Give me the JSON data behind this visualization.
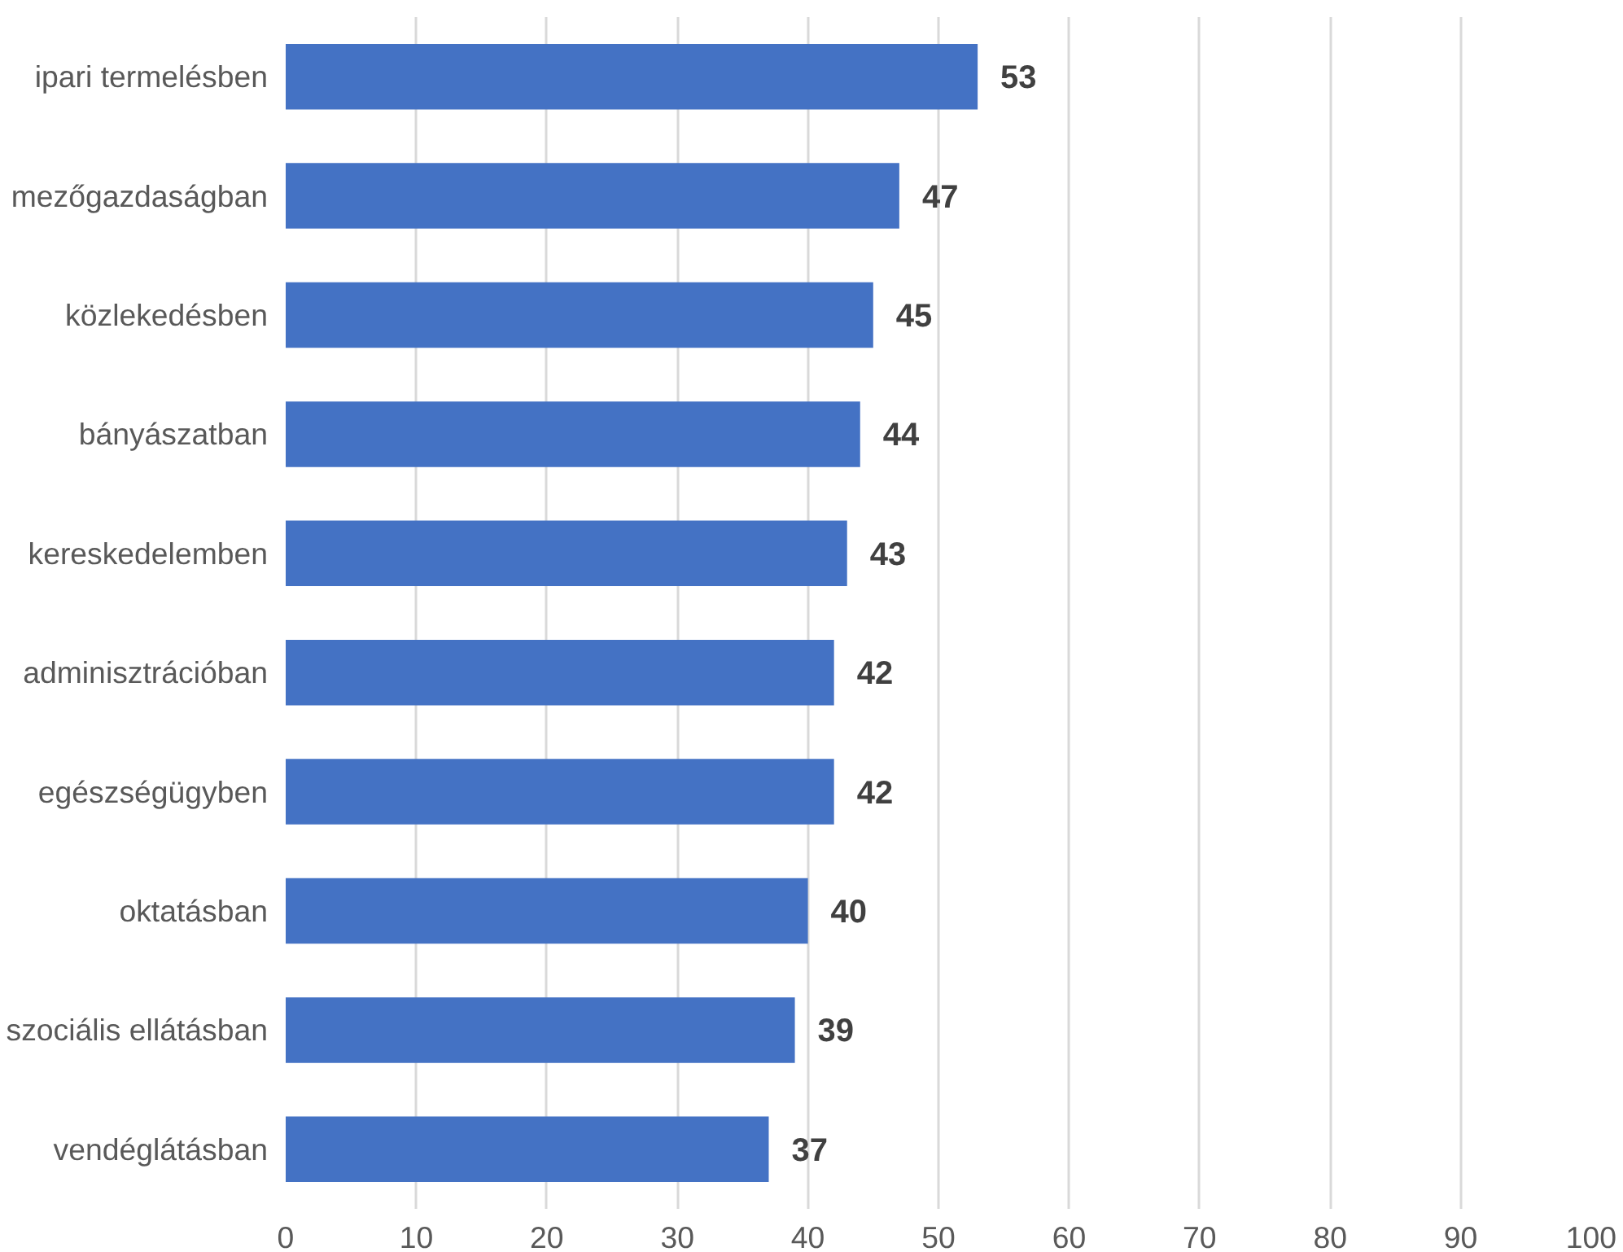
{
  "chart_data": {
    "type": "bar",
    "orientation": "horizontal",
    "categories": [
      "ipari termelésben",
      "mezőgazdaságban",
      "közlekedésben",
      "bányászatban",
      "kereskedelemben",
      "adminisztrációban",
      "egészségügyben",
      "oktatásban",
      "szociális ellátásban",
      "vendéglátásban"
    ],
    "values": [
      53,
      47,
      45,
      44,
      43,
      42,
      42,
      40,
      39,
      37
    ],
    "color": "#4472c4",
    "xlim": [
      0,
      100
    ],
    "xticks": [
      0,
      10,
      20,
      30,
      40,
      50,
      60,
      70,
      80,
      90,
      100
    ],
    "grid": "x",
    "data_labels": true
  }
}
